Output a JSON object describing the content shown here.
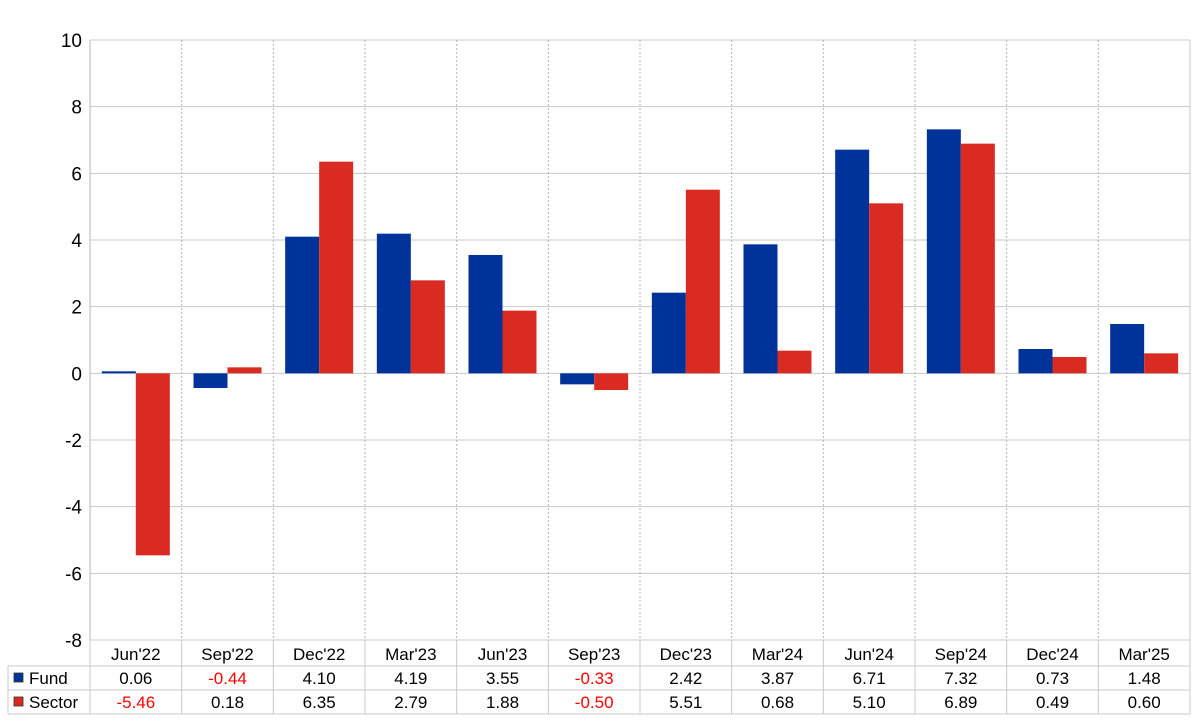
{
  "chart_data": {
    "type": "bar",
    "title": "",
    "xlabel": "",
    "ylabel": "",
    "ylim": [
      -8,
      10
    ],
    "yticks": [
      -8,
      -6,
      -4,
      -2,
      0,
      2,
      4,
      6,
      8,
      10
    ],
    "grid": true,
    "legend": "table-left",
    "categories": [
      "Jun'22",
      "Sep'22",
      "Dec'22",
      "Mar'23",
      "Jun'23",
      "Sep'23",
      "Dec'23",
      "Mar'24",
      "Jun'24",
      "Sep'24",
      "Dec'24",
      "Mar'25"
    ],
    "series": [
      {
        "name": "Fund",
        "color": "#003399",
        "values": [
          0.06,
          -0.44,
          4.1,
          4.19,
          3.55,
          -0.33,
          2.42,
          3.87,
          6.71,
          7.32,
          0.73,
          1.48
        ],
        "labels": [
          "0.06",
          "-0.44",
          "4.10",
          "4.19",
          "3.55",
          "-0.33",
          "2.42",
          "3.87",
          "6.71",
          "7.32",
          "0.73",
          "1.48"
        ]
      },
      {
        "name": "Sector",
        "color": "#d92b22",
        "values": [
          -5.46,
          0.18,
          6.35,
          2.79,
          1.88,
          -0.5,
          5.51,
          0.68,
          5.1,
          6.89,
          0.49,
          0.6
        ],
        "labels": [
          "-5.46",
          "0.18",
          "6.35",
          "2.79",
          "1.88",
          "-0.50",
          "5.51",
          "0.68",
          "5.10",
          "6.89",
          "0.49",
          "0.60"
        ]
      }
    ],
    "negative_label_color": "#ff0000"
  }
}
